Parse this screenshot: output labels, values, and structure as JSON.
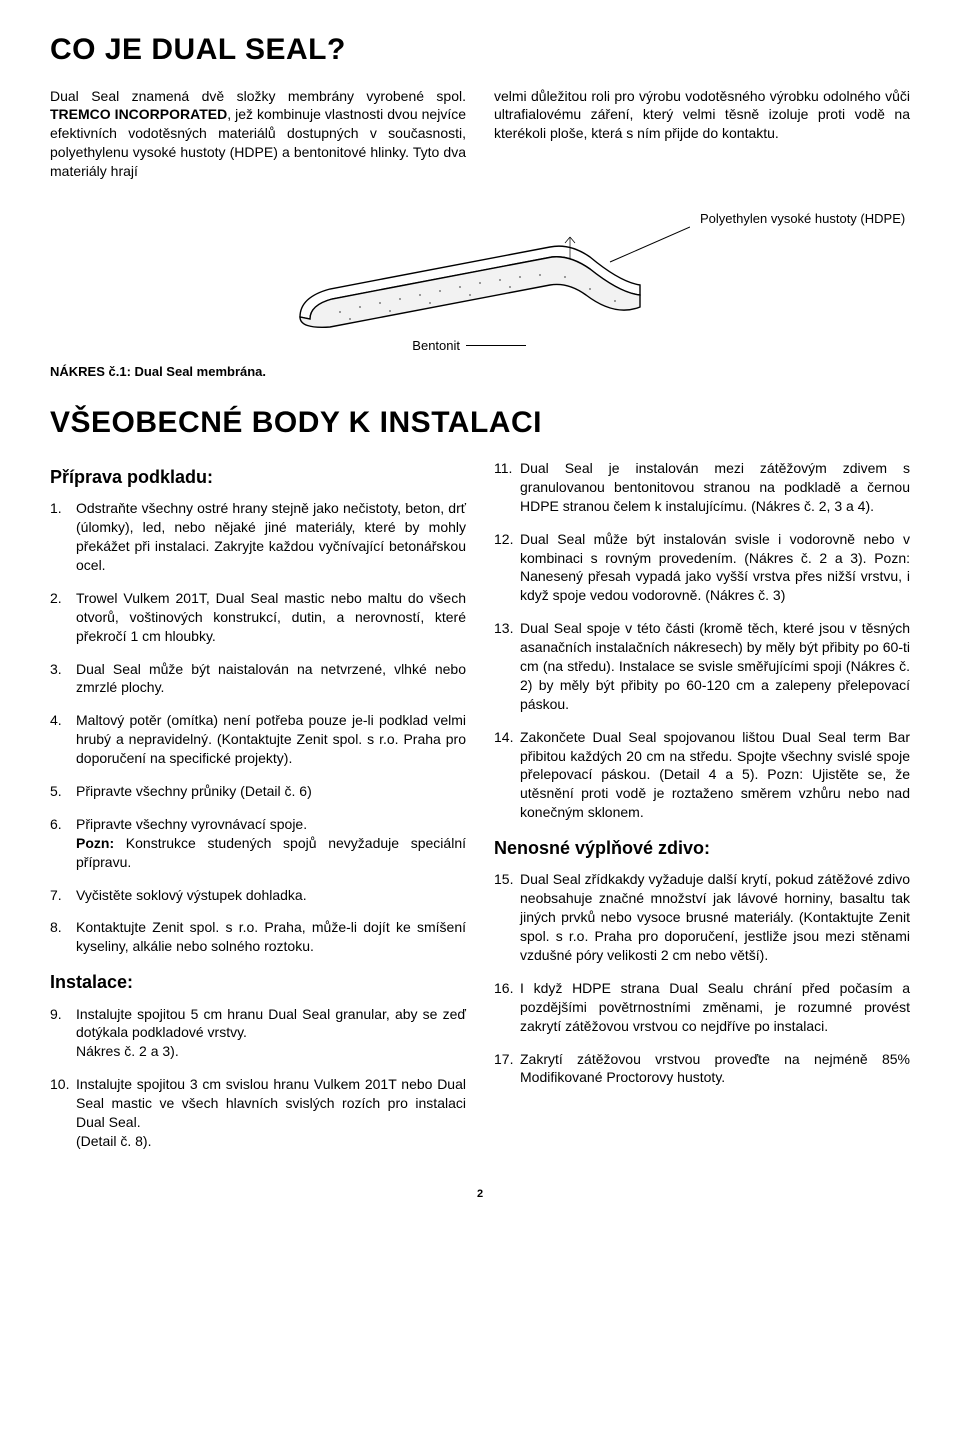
{
  "section1": {
    "title": "CO JE DUAL SEAL?",
    "left_para": "Dual Seal znamená dvě složky membrány vyrobené spol. TREMCO INCORPORATED, jež kombinuje vlastnosti dvou nejvíce efektivních vodotěsných materiálů dostupných v současnosti, polyethylenu vysoké hustoty (HDPE) a bentonitové hlinky. Tyto dva materiály hrají",
    "right_para": "velmi důležitou roli pro výrobu vodotěsného výrobku odolného vůči ultrafialovému záření, který velmi těsně izoluje proti vodě na kterékoli ploše, která s ním přijde do kontaktu.",
    "hdpe_label": "Polyethylen vysoké hustoty (HDPE)",
    "bentonit_label": "Bentonit",
    "caption": "NÁKRES č.1: Dual Seal membrána."
  },
  "section2": {
    "title": "VŠEOBECNÉ BODY K INSTALACI",
    "left": {
      "h_prep": "Příprava podkladu:",
      "items_prep": [
        "Odstraňte všechny ostré hrany stejně jako nečistoty, beton, drť (úlomky), led, nebo nějaké jiné materiály, které by mohly překážet při instalaci. Zakryjte každou vyčnívající betonářskou ocel.",
        "Trowel Vulkem 201T, Dual Seal mastic nebo maltu do všech otvorů, voštinových konstrukcí, dutin, a nerovností, které překročí 1 cm hloubky.",
        "Dual Seal může být naistalován na netvrzené, vlhké nebo zmrzlé plochy.",
        "Maltový potěr (omítka) není potřeba pouze je-li podklad velmi hrubý a nepravidelný. (Kontaktujte Zenit spol. s r.o. Praha pro doporučení na specifické projekty).",
        "Připravte všechny průniky (Detail č. 6)",
        "Připravte všechny vyrovnávací spoje.\nPozn: Konstrukce studených spojů nevyžaduje speciální přípravu.",
        "Vyčistěte soklový výstupek dohladka.",
        "Kontaktujte Zenit spol. s r.o. Praha, může-li dojít ke smíšení kyseliny, alkálie nebo solného roztoku."
      ],
      "h_inst": "Instalace:",
      "items_inst": [
        "Instalujte spojitou 5 cm hranu Dual Seal granular, aby se zeď dotýkala podkladové vrstvy.\nNákres č. 2 a 3).",
        "Instalujte spojitou 3 cm svislou hranu Vulkem 201T nebo Dual Seal mastic ve všech hlavních svislých rozích pro instalaci Dual Seal.\n(Detail č. 8)."
      ]
    },
    "right": {
      "items_inst_cont": [
        "Dual Seal je instalován mezi zátěžovým zdivem s granulovanou bentonitovou stranou na podkladě a černou HDPE stranou čelem k instalujícímu. (Nákres č. 2, 3 a 4).",
        "Dual Seal může být instalován svisle i vodorovně nebo v kombinaci s rovným provedením. (Nákres č. 2 a 3). Pozn: Nanesený přesah vypadá jako vyšší vrstva přes nižší vrstvu, i když spoje vedou vodorovně. (Nákres č. 3)",
        "Dual Seal spoje v této části (kromě těch, které jsou v těsných asanačních instalačních nákresech) by měly být přibity po 60-ti cm (na středu). Instalace se svisle směřujícími spoji (Nákres č. 2) by měly být přibity po 60-120 cm a zalepeny přelepovací páskou.",
        "Zakončete Dual Seal spojovanou lištou Dual Seal term Bar přibitou každých 20 cm na středu. Spojte všechny svislé spoje přelepovací páskou. (Detail 4 a 5). Pozn: Ujistěte se, že utěsnění proti vodě je roztaženo směrem vzhůru nebo nad konečným sklonem."
      ],
      "h_zdivo": "Nenosné výplňové zdivo:",
      "items_zdivo": [
        "Dual Seal zřídkakdy vyžaduje další krytí, pokud zátěžové zdivo neobsahuje značné množství jak lávové horniny, basaltu tak jiných prvků nebo vysoce brusné materiály. (Kontaktujte Zenit spol. s r.o. Praha pro doporučení, jestliže jsou mezi stěnami vzdušné póry velikosti 2 cm nebo větší).",
        "I když HDPE strana Dual Sealu chrání před počasím a pozdějšími povětrnostními změnami, je rozumné provést zakrytí zátěžovou vrstvou co nejdříve po instalaci.",
        "Zakrytí zátěžovou vrstvou proveďte na nejméně 85% Modifikované Proctorovy hustoty."
      ]
    }
  },
  "page_num": "2"
}
